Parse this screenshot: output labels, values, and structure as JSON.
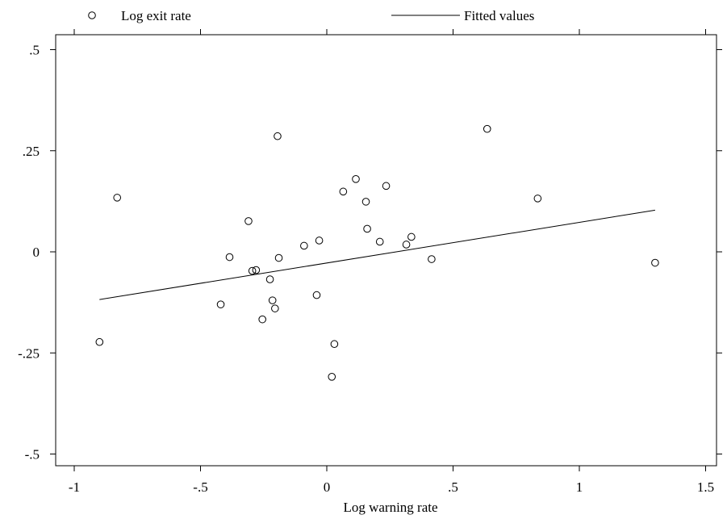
{
  "chart_data": {
    "type": "scatter",
    "xlabel": "Log warning rate",
    "ylabel": "",
    "xlim": [
      -1.07,
      1.55
    ],
    "ylim": [
      -0.53,
      0.53
    ],
    "grid": false,
    "legend_position": "top",
    "x_ticks": [
      -1,
      -0.5,
      0,
      0.5,
      1,
      1.5
    ],
    "x_tick_labels": [
      "-1",
      "-.5",
      "0",
      ".5",
      "1",
      "1.5"
    ],
    "y_ticks": [
      0.5,
      0.25,
      0,
      -0.25,
      -0.5
    ],
    "y_tick_labels": [
      ".5",
      ".25",
      "0",
      "-.25",
      "-.5"
    ],
    "series": [
      {
        "name": "Log exit rate",
        "kind": "markers",
        "marker": "hollow-circle",
        "points": [
          [
            -0.9,
            -0.223
          ],
          [
            -0.83,
            0.134
          ],
          [
            -0.42,
            -0.13
          ],
          [
            -0.385,
            -0.013
          ],
          [
            -0.31,
            0.076
          ],
          [
            -0.295,
            -0.047
          ],
          [
            -0.28,
            -0.045
          ],
          [
            -0.255,
            -0.167
          ],
          [
            -0.225,
            -0.068
          ],
          [
            -0.215,
            -0.12
          ],
          [
            -0.205,
            -0.14
          ],
          [
            -0.195,
            0.286
          ],
          [
            -0.19,
            -0.015
          ],
          [
            -0.09,
            0.015
          ],
          [
            -0.04,
            -0.107
          ],
          [
            -0.03,
            0.028
          ],
          [
            0.02,
            -0.309
          ],
          [
            0.03,
            -0.228
          ],
          [
            0.065,
            0.149
          ],
          [
            0.115,
            0.18
          ],
          [
            0.155,
            0.124
          ],
          [
            0.16,
            0.057
          ],
          [
            0.21,
            0.025
          ],
          [
            0.235,
            0.163
          ],
          [
            0.315,
            0.018
          ],
          [
            0.335,
            0.037
          ],
          [
            0.415,
            -0.018
          ],
          [
            0.635,
            0.304
          ],
          [
            0.835,
            0.132
          ],
          [
            1.3,
            -0.027
          ]
        ]
      },
      {
        "name": "Fitted values",
        "kind": "line",
        "points": [
          [
            -0.9,
            -0.118
          ],
          [
            1.3,
            0.103
          ]
        ]
      }
    ]
  },
  "colors": {
    "marks": "#000000",
    "background": "#ffffff"
  }
}
